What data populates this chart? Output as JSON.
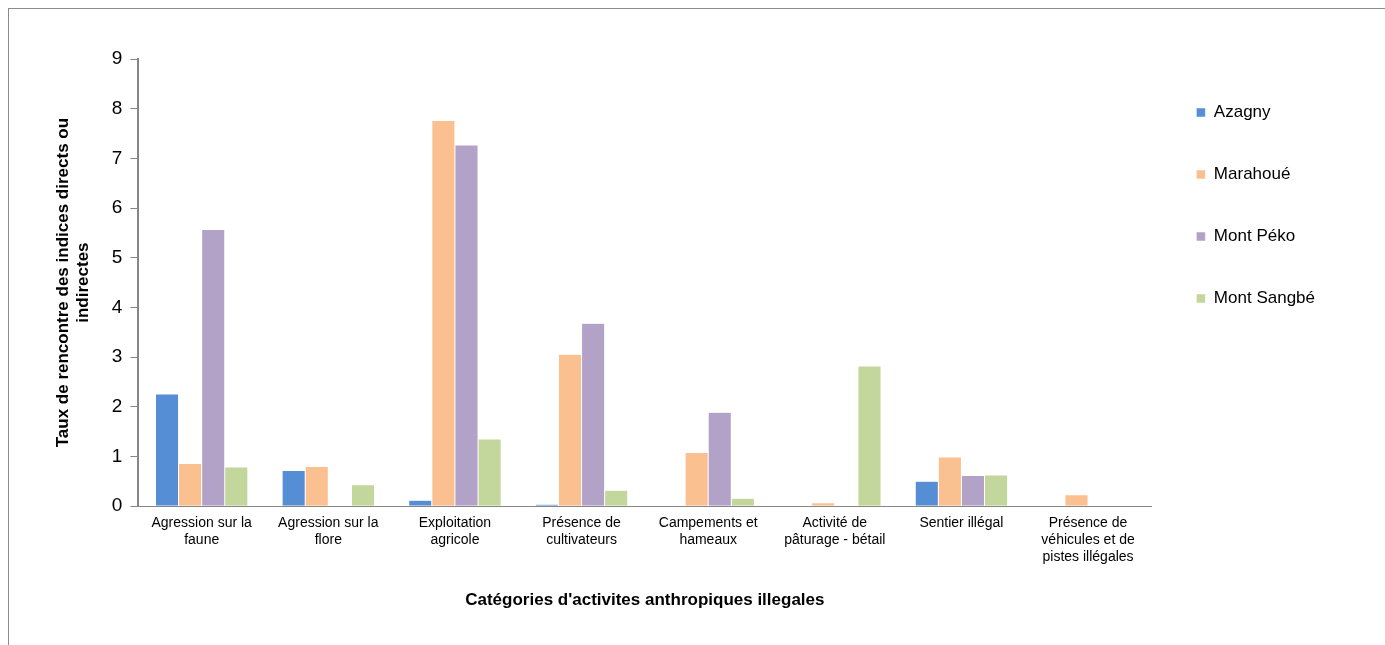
{
  "chart_data": {
    "type": "bar",
    "xlabel": "Catégories d'activites anthropiques illegales",
    "ylabel": "Taux de rencontre des indices directs ou indirectes",
    "categories": [
      "Agression sur la faune",
      "Agression sur la flore",
      "Exploitation agricole",
      "Présence de cultivateurs",
      "Campements et hameaux",
      "Activité de pâturage - bétail",
      "Sentier illégal",
      "Présence de véhicules et de pistes illégales"
    ],
    "series": [
      {
        "name": "Azagny",
        "color": "#558ed5",
        "values": [
          2.26,
          0.72,
          0.12,
          0.04,
          0,
          0,
          0.5,
          0
        ]
      },
      {
        "name": "Marahoué",
        "color": "#fac090",
        "values": [
          0.86,
          0.8,
          7.76,
          3.06,
          1.08,
          0.07,
          0.99,
          0.23
        ]
      },
      {
        "name": "Mont Péko",
        "color": "#b3a2c7",
        "values": [
          5.57,
          0,
          7.27,
          3.68,
          1.89,
          0,
          0.62,
          0
        ]
      },
      {
        "name": "Mont Sangbé",
        "color": "#c3d69b",
        "values": [
          0.79,
          0.43,
          1.35,
          0.32,
          0.16,
          2.82,
          0.63,
          0
        ]
      }
    ],
    "ylim": [
      0,
      9
    ],
    "yticks": [
      0,
      1,
      2,
      3,
      4,
      5,
      6,
      7,
      8,
      9
    ],
    "grid": false,
    "legend": "top right"
  }
}
